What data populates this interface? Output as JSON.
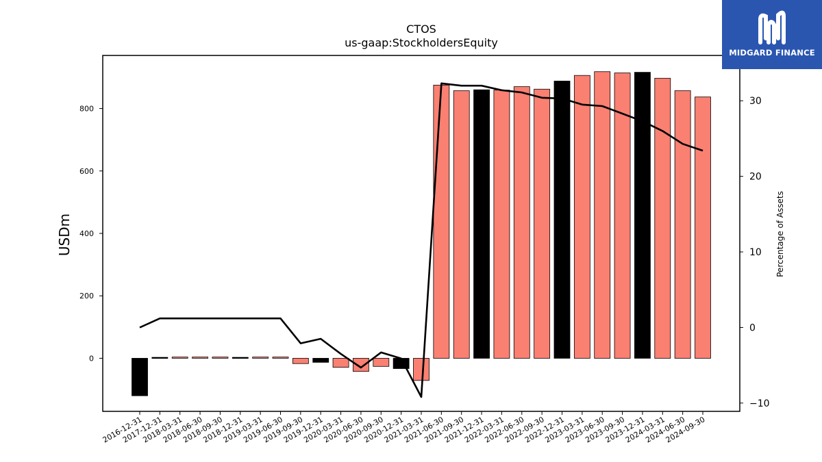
{
  "chart_data": {
    "type": "bar",
    "title": "CTOS",
    "subtitle": "us-gaap:StockholdersEquity",
    "ylabel": "USDm",
    "y2label": "Percentage of Assets",
    "ylim": [
      -170,
      970
    ],
    "y2lim": [
      -11.1,
      36.0
    ],
    "yticks": [
      0,
      200,
      400,
      600,
      800
    ],
    "y2ticks": [
      -10,
      0,
      10,
      20,
      30
    ],
    "y2tick_labels": [
      "−10",
      "0",
      "10",
      "20",
      "30"
    ],
    "grid": false,
    "categories": [
      "2016-12-31",
      "2017-12-31",
      "2018-03-31",
      "2018-06-30",
      "2018-09-30",
      "2018-12-31",
      "2019-03-31",
      "2019-06-30",
      "2019-09-30",
      "2019-12-31",
      "2020-03-31",
      "2020-06-30",
      "2020-09-30",
      "2020-12-31",
      "2021-03-31",
      "2021-06-30",
      "2021-09-30",
      "2021-12-31",
      "2022-03-31",
      "2022-06-30",
      "2022-09-30",
      "2022-12-31",
      "2023-03-31",
      "2023-06-30",
      "2023-09-30",
      "2023-12-31",
      "2024-03-31",
      "2024-06-30",
      "2024-09-30"
    ],
    "series": [
      {
        "type": "bar",
        "values": [
          -120,
          3,
          4,
          4,
          4,
          3,
          4,
          4,
          -17,
          -13,
          -29,
          -42,
          -26,
          -33,
          -71,
          875,
          857,
          860,
          859,
          870,
          862,
          888,
          906,
          918,
          914,
          916,
          897,
          857,
          837
        ]
      },
      {
        "type": "line",
        "axis": "right",
        "values": [
          0.0,
          1.2,
          1.2,
          1.2,
          1.2,
          1.2,
          1.2,
          1.2,
          -2.1,
          -1.5,
          -3.5,
          -5.3,
          -3.3,
          -4.1,
          -9.2,
          32.3,
          32.0,
          32.0,
          31.4,
          31.1,
          30.4,
          30.3,
          29.5,
          29.3,
          28.3,
          27.3,
          26.0,
          24.3,
          23.4
        ]
      }
    ],
    "bar_colors": {
      "annual": "#000000",
      "quarterly": "#fa8072"
    },
    "annual_categories": [
      "2016-12-31",
      "2017-12-31",
      "2018-12-31",
      "2019-12-31",
      "2020-12-31",
      "2021-12-31",
      "2022-12-31",
      "2023-12-31"
    ],
    "line_color": "#000000"
  },
  "logo": {
    "text": "MIDGARD FINANCE",
    "background": "#2a56b0",
    "icon": "midgard-logo-mark"
  }
}
